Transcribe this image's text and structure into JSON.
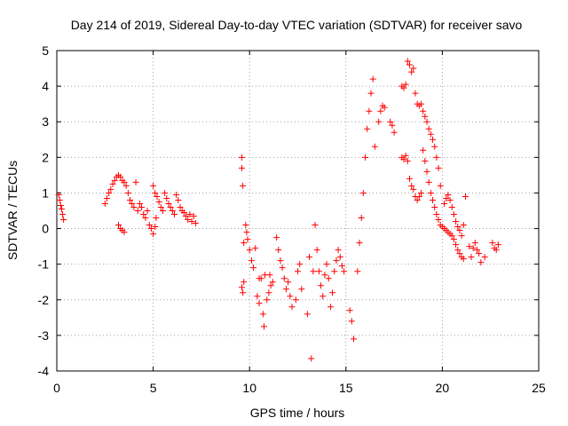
{
  "chart_data": {
    "type": "scatter",
    "title": "Day 214 of 2019, Sidereal Day-to-day VTEC variation (SDTVAR) for receiver savo",
    "xlabel": "GPS time / hours",
    "ylabel": "SDTVAR / TECUs",
    "xlim": [
      0,
      25
    ],
    "ylim": [
      -4,
      5
    ],
    "x_ticks": [
      "0",
      "5",
      "10",
      "15",
      "20",
      "25"
    ],
    "y_ticks": [
      "-4",
      "-3",
      "-2",
      "-1",
      "0",
      "1",
      "2",
      "3",
      "4",
      "5"
    ],
    "grid": true,
    "marker": "+",
    "series": [
      {
        "name": "SDTVAR",
        "color": "#ff0000",
        "points": [
          [
            0.1,
            0.95
          ],
          [
            0.15,
            0.8
          ],
          [
            0.2,
            0.65
          ],
          [
            0.25,
            0.55
          ],
          [
            0.3,
            0.4
          ],
          [
            0.35,
            0.25
          ],
          [
            2.5,
            0.7
          ],
          [
            2.6,
            0.85
          ],
          [
            2.7,
            1.0
          ],
          [
            2.8,
            1.1
          ],
          [
            2.9,
            1.25
          ],
          [
            3.0,
            1.35
          ],
          [
            3.1,
            1.45
          ],
          [
            3.2,
            1.5
          ],
          [
            3.3,
            1.45
          ],
          [
            3.4,
            1.35
          ],
          [
            3.2,
            0.1
          ],
          [
            3.3,
            0.0
          ],
          [
            3.4,
            -0.05
          ],
          [
            3.5,
            -0.1
          ],
          [
            3.5,
            1.3
          ],
          [
            3.6,
            1.2
          ],
          [
            3.7,
            1.0
          ],
          [
            3.8,
            0.8
          ],
          [
            3.9,
            0.7
          ],
          [
            4.0,
            0.6
          ],
          [
            4.1,
            1.3
          ],
          [
            4.2,
            0.5
          ],
          [
            4.3,
            0.7
          ],
          [
            4.4,
            0.6
          ],
          [
            4.5,
            0.4
          ],
          [
            4.6,
            0.3
          ],
          [
            4.7,
            0.5
          ],
          [
            4.8,
            0.1
          ],
          [
            4.9,
            0.0
          ],
          [
            5.0,
            -0.15
          ],
          [
            5.1,
            0.05
          ],
          [
            5.15,
            0.3
          ],
          [
            5.0,
            1.2
          ],
          [
            5.1,
            1.0
          ],
          [
            5.2,
            0.9
          ],
          [
            5.3,
            0.75
          ],
          [
            5.4,
            0.6
          ],
          [
            5.5,
            0.5
          ],
          [
            5.6,
            1.0
          ],
          [
            5.7,
            0.85
          ],
          [
            5.8,
            0.7
          ],
          [
            5.9,
            0.6
          ],
          [
            6.0,
            0.5
          ],
          [
            6.1,
            0.4
          ],
          [
            6.2,
            0.95
          ],
          [
            6.3,
            0.8
          ],
          [
            6.4,
            0.6
          ],
          [
            6.5,
            0.5
          ],
          [
            6.6,
            0.45
          ],
          [
            6.7,
            0.35
          ],
          [
            6.8,
            0.25
          ],
          [
            6.9,
            0.4
          ],
          [
            7.0,
            0.2
          ],
          [
            7.1,
            0.35
          ],
          [
            7.2,
            0.15
          ],
          [
            9.6,
            2.0
          ],
          [
            9.6,
            1.7
          ],
          [
            9.65,
            1.2
          ],
          [
            9.6,
            -1.65
          ],
          [
            9.65,
            -1.8
          ],
          [
            9.7,
            -1.5
          ],
          [
            9.7,
            -0.4
          ],
          [
            9.8,
            0.1
          ],
          [
            9.85,
            -0.1
          ],
          [
            9.9,
            -0.3
          ],
          [
            10.0,
            -0.6
          ],
          [
            10.1,
            -0.9
          ],
          [
            10.2,
            -1.1
          ],
          [
            10.3,
            -0.55
          ],
          [
            10.4,
            -1.9
          ],
          [
            10.5,
            -2.1
          ],
          [
            10.5,
            -1.4
          ],
          [
            10.6,
            -1.4
          ],
          [
            10.7,
            -2.4
          ],
          [
            10.75,
            -2.75
          ],
          [
            10.8,
            -1.3
          ],
          [
            10.9,
            -2.0
          ],
          [
            11.0,
            -1.8
          ],
          [
            11.05,
            -1.3
          ],
          [
            11.1,
            -1.6
          ],
          [
            11.2,
            -1.5
          ],
          [
            11.4,
            -0.25
          ],
          [
            11.5,
            -0.6
          ],
          [
            11.6,
            -0.9
          ],
          [
            11.7,
            -1.1
          ],
          [
            11.8,
            -1.4
          ],
          [
            11.9,
            -1.7
          ],
          [
            12.0,
            -1.5
          ],
          [
            12.1,
            -1.9
          ],
          [
            12.2,
            -2.2
          ],
          [
            12.4,
            -2.0
          ],
          [
            12.5,
            -1.2
          ],
          [
            12.6,
            -1.0
          ],
          [
            12.7,
            -1.7
          ],
          [
            13.0,
            -2.4
          ],
          [
            13.1,
            -0.8
          ],
          [
            13.2,
            -3.65
          ],
          [
            13.3,
            -1.2
          ],
          [
            13.4,
            0.1
          ],
          [
            13.5,
            -0.6
          ],
          [
            13.6,
            -1.2
          ],
          [
            13.7,
            -1.6
          ],
          [
            13.8,
            -1.9
          ],
          [
            13.9,
            -1.3
          ],
          [
            14.0,
            -1.0
          ],
          [
            14.1,
            -1.4
          ],
          [
            14.2,
            -2.2
          ],
          [
            14.3,
            -1.8
          ],
          [
            14.4,
            -1.2
          ],
          [
            14.5,
            -0.9
          ],
          [
            14.6,
            -0.6
          ],
          [
            14.7,
            -0.8
          ],
          [
            14.8,
            -1.05
          ],
          [
            14.9,
            -1.2
          ],
          [
            15.2,
            -2.3
          ],
          [
            15.3,
            -2.6
          ],
          [
            15.4,
            -3.1
          ],
          [
            15.6,
            -1.2
          ],
          [
            15.7,
            -0.4
          ],
          [
            15.8,
            0.3
          ],
          [
            15.9,
            1.0
          ],
          [
            16.0,
            2.0
          ],
          [
            16.1,
            2.8
          ],
          [
            16.2,
            3.3
          ],
          [
            16.3,
            3.8
          ],
          [
            16.4,
            4.2
          ],
          [
            16.5,
            2.3
          ],
          [
            16.7,
            3.0
          ],
          [
            16.8,
            3.3
          ],
          [
            16.9,
            3.45
          ],
          [
            17.0,
            3.4
          ],
          [
            17.3,
            3.0
          ],
          [
            17.4,
            2.9
          ],
          [
            17.5,
            2.7
          ],
          [
            17.9,
            2.0
          ],
          [
            18.0,
            1.95
          ],
          [
            18.1,
            2.05
          ],
          [
            18.2,
            1.9
          ],
          [
            17.9,
            4.0
          ],
          [
            18.0,
            3.95
          ],
          [
            18.1,
            4.05
          ],
          [
            18.2,
            4.7
          ],
          [
            18.3,
            4.6
          ],
          [
            18.4,
            4.4
          ],
          [
            18.5,
            4.5
          ],
          [
            18.6,
            3.8
          ],
          [
            18.7,
            3.5
          ],
          [
            18.8,
            3.45
          ],
          [
            18.9,
            3.5
          ],
          [
            19.0,
            3.3
          ],
          [
            19.1,
            3.15
          ],
          [
            19.2,
            3.0
          ],
          [
            19.3,
            2.8
          ],
          [
            19.4,
            2.65
          ],
          [
            19.5,
            2.5
          ],
          [
            19.6,
            2.3
          ],
          [
            19.7,
            2.0
          ],
          [
            19.8,
            1.7
          ],
          [
            19.9,
            1.2
          ],
          [
            18.3,
            1.4
          ],
          [
            18.4,
            1.2
          ],
          [
            18.5,
            1.1
          ],
          [
            18.6,
            0.9
          ],
          [
            18.7,
            0.8
          ],
          [
            18.8,
            0.9
          ],
          [
            18.9,
            1.0
          ],
          [
            19.0,
            2.2
          ],
          [
            19.1,
            1.9
          ],
          [
            19.2,
            1.6
          ],
          [
            19.3,
            1.3
          ],
          [
            19.4,
            1.0
          ],
          [
            19.5,
            0.8
          ],
          [
            19.6,
            0.6
          ],
          [
            19.7,
            0.4
          ],
          [
            19.8,
            0.25
          ],
          [
            19.9,
            0.1
          ],
          [
            20.0,
            0.05
          ],
          [
            20.1,
            0.0
          ],
          [
            20.2,
            -0.05
          ],
          [
            20.3,
            -0.1
          ],
          [
            20.4,
            -0.15
          ],
          [
            20.5,
            -0.2
          ],
          [
            20.6,
            -0.3
          ],
          [
            20.7,
            -0.45
          ],
          [
            20.8,
            -0.6
          ],
          [
            20.9,
            -0.7
          ],
          [
            21.0,
            -0.8
          ],
          [
            21.1,
            -0.85
          ],
          [
            20.1,
            0.7
          ],
          [
            20.2,
            0.85
          ],
          [
            20.3,
            0.95
          ],
          [
            20.4,
            0.8
          ],
          [
            20.5,
            0.6
          ],
          [
            20.6,
            0.4
          ],
          [
            20.7,
            0.2
          ],
          [
            20.8,
            0.05
          ],
          [
            20.9,
            -0.05
          ],
          [
            21.0,
            -0.2
          ],
          [
            21.1,
            0.1
          ],
          [
            21.2,
            0.9
          ],
          [
            21.4,
            -0.5
          ],
          [
            21.5,
            -0.8
          ],
          [
            21.6,
            -0.55
          ],
          [
            21.7,
            -0.4
          ],
          [
            21.8,
            -0.6
          ],
          [
            21.9,
            -0.7
          ],
          [
            22.0,
            -0.95
          ],
          [
            22.2,
            -0.8
          ],
          [
            22.6,
            -0.4
          ],
          [
            22.7,
            -0.55
          ],
          [
            22.8,
            -0.6
          ],
          [
            22.9,
            -0.45
          ]
        ]
      }
    ]
  }
}
